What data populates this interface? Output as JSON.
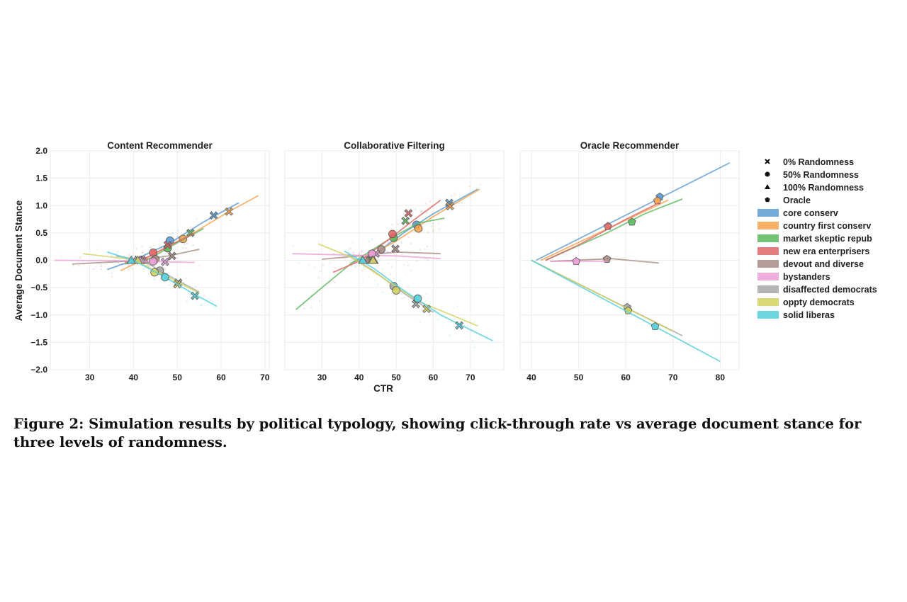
{
  "figure": {
    "caption": "Figure 2: Simulation results by political typology, showing click-through rate vs average document stance for three levels of randomness.",
    "shared_ylabel": "Average Document Stance",
    "shared_xlabel": "CTR",
    "legend": {
      "markers": [
        {
          "label": "0% Randomness",
          "marker": "x"
        },
        {
          "label": "50% Randomness",
          "marker": "circle"
        },
        {
          "label": "100% Randomness",
          "marker": "triangle"
        },
        {
          "label": "Oracle",
          "marker": "pentagon"
        }
      ],
      "groups": [
        {
          "label": "core conserv",
          "color": "#5b9bd0"
        },
        {
          "label": "country first conserv",
          "color": "#f5a24e"
        },
        {
          "label": "market skeptic repub",
          "color": "#5cb85c"
        },
        {
          "label": "new era enterprisers",
          "color": "#e06666"
        },
        {
          "label": "devout and diverse",
          "color": "#a88b84"
        },
        {
          "label": "bystanders",
          "color": "#ec9fd8"
        },
        {
          "label": "disaffected democrats",
          "color": "#a6a6a6"
        },
        {
          "label": "oppty democrats",
          "color": "#d2d260"
        },
        {
          "label": "solid liberas",
          "color": "#53d0dc"
        }
      ]
    }
  },
  "chart_data": [
    {
      "type": "scatter",
      "title": "Content Recommender",
      "xlim": [
        21,
        71
      ],
      "ylim": [
        -2.0,
        2.0
      ],
      "xticks": [
        "30",
        "40",
        "50",
        "60",
        "70"
      ],
      "yticks": [
        "2.0",
        "1.5",
        "1.0",
        "0.5",
        "0.0",
        "−0.5",
        "−1.0",
        "−1.5",
        "−2.0"
      ],
      "grid": true,
      "series": [
        {
          "name": "core conserv",
          "line": [
            [
              34,
              -0.17
            ],
            [
              40,
              0
            ],
            [
              48,
              0.3
            ],
            [
              56,
              0.7
            ],
            [
              64,
              1.05
            ]
          ],
          "points": [
            {
              "x": 58.3,
              "y": 0.82,
              "m": "x"
            },
            {
              "x": 48.3,
              "y": 0.36,
              "m": "circle"
            },
            {
              "x": 40.5,
              "y": 0,
              "m": "triangle"
            }
          ]
        },
        {
          "name": "country first conserv",
          "line": [
            [
              37,
              -0.19
            ],
            [
              42,
              0
            ],
            [
              52,
              0.42
            ],
            [
              62,
              0.9
            ],
            [
              68.5,
              1.18
            ]
          ],
          "points": [
            {
              "x": 61.8,
              "y": 0.89,
              "m": "x"
            },
            {
              "x": 51.3,
              "y": 0.39,
              "m": "circle"
            },
            {
              "x": 41.8,
              "y": 0,
              "m": "triangle"
            }
          ]
        },
        {
          "name": "market skeptic repub",
          "line": [
            [
              38,
              -0.07
            ],
            [
              43,
              0
            ],
            [
              50,
              0.32
            ],
            [
              56,
              0.58
            ]
          ],
          "points": [
            {
              "x": 53.0,
              "y": 0.5,
              "m": "x"
            },
            {
              "x": 47.8,
              "y": 0.22,
              "m": "circle"
            },
            {
              "x": 41.5,
              "y": 0,
              "m": "triangle"
            }
          ]
        },
        {
          "name": "new era enterprisers",
          "line": [
            [
              38,
              -0.04
            ],
            [
              43,
              0.05
            ],
            [
              49,
              0.3
            ],
            [
              54,
              0.5
            ]
          ],
          "points": [
            {
              "x": 47.8,
              "y": 0.28,
              "m": "x"
            },
            {
              "x": 44.5,
              "y": 0.14,
              "m": "circle"
            },
            {
              "x": 42.5,
              "y": 0,
              "m": "triangle"
            }
          ]
        },
        {
          "name": "devout and diverse",
          "line": [
            [
              26,
              -0.07
            ],
            [
              40,
              -0.01
            ],
            [
              48,
              0.08
            ],
            [
              55,
              0.2
            ]
          ],
          "points": [
            {
              "x": 48.8,
              "y": 0.08,
              "m": "x"
            },
            {
              "x": 45.0,
              "y": 0.02,
              "m": "circle"
            },
            {
              "x": 42.0,
              "y": 0,
              "m": "triangle"
            }
          ]
        },
        {
          "name": "bystanders",
          "line": [
            [
              22,
              0
            ],
            [
              40,
              -0.01
            ],
            [
              48,
              -0.03
            ],
            [
              54,
              -0.04
            ]
          ],
          "points": [
            {
              "x": 47.2,
              "y": -0.03,
              "m": "x"
            },
            {
              "x": 44.5,
              "y": -0.02,
              "m": "circle"
            },
            {
              "x": 41.5,
              "y": 0,
              "m": "triangle"
            }
          ]
        },
        {
          "name": "disaffected democrats",
          "line": [
            [
              36,
              0.08
            ],
            [
              42,
              0
            ],
            [
              48,
              -0.28
            ],
            [
              55,
              -0.58
            ]
          ],
          "points": [
            {
              "x": 50.2,
              "y": -0.41,
              "m": "x"
            },
            {
              "x": 46.0,
              "y": -0.19,
              "m": "circle"
            },
            {
              "x": 40.5,
              "y": 0,
              "m": "triangle"
            }
          ]
        },
        {
          "name": "oppty democrats",
          "line": [
            [
              28.5,
              0.12
            ],
            [
              40,
              0.01
            ],
            [
              47,
              -0.27
            ],
            [
              55,
              -0.6
            ]
          ],
          "points": [
            {
              "x": 50.0,
              "y": -0.44,
              "m": "x"
            },
            {
              "x": 44.8,
              "y": -0.22,
              "m": "circle"
            },
            {
              "x": 41.0,
              "y": 0,
              "m": "triangle"
            }
          ]
        },
        {
          "name": "solid liberas",
          "line": [
            [
              34,
              0.15
            ],
            [
              40,
              0
            ],
            [
              47,
              -0.3
            ],
            [
              53,
              -0.58
            ],
            [
              59,
              -0.84
            ]
          ],
          "points": [
            {
              "x": 54.0,
              "y": -0.65,
              "m": "x"
            },
            {
              "x": 47.2,
              "y": -0.31,
              "m": "circle"
            },
            {
              "x": 39.5,
              "y": 0,
              "m": "triangle"
            }
          ]
        }
      ]
    },
    {
      "type": "scatter",
      "title": "Collaborative Filtering",
      "xlim": [
        20,
        79
      ],
      "ylim": [
        -2.0,
        2.0
      ],
      "xticks": [
        "30",
        "40",
        "50",
        "60",
        "70"
      ],
      "yticks": [],
      "grid": true,
      "series": [
        {
          "name": "core conserv",
          "line": [
            [
              38,
              -0.05
            ],
            [
              45,
              0.15
            ],
            [
              52,
              0.5
            ],
            [
              60,
              0.85
            ],
            [
              72,
              1.3
            ]
          ],
          "points": [
            {
              "x": 64.3,
              "y": 1.05,
              "m": "x"
            },
            {
              "x": 55.5,
              "y": 0.65,
              "m": "circle"
            },
            {
              "x": 42.5,
              "y": 0,
              "m": "triangle"
            }
          ]
        },
        {
          "name": "country first conserv",
          "line": [
            [
              41,
              0.02
            ],
            [
              50,
              0.35
            ],
            [
              60,
              0.8
            ],
            [
              72.5,
              1.3
            ]
          ],
          "points": [
            {
              "x": 64.5,
              "y": 0.99,
              "m": "x"
            },
            {
              "x": 56.0,
              "y": 0.58,
              "m": "circle"
            },
            {
              "x": 43.0,
              "y": 0,
              "m": "triangle"
            }
          ]
        },
        {
          "name": "market skeptic repub",
          "line": [
            [
              23,
              -0.9
            ],
            [
              30,
              -0.5
            ],
            [
              38,
              -0.05
            ],
            [
              48,
              0.38
            ],
            [
              56,
              0.68
            ],
            [
              63,
              0.77
            ]
          ],
          "points": [
            {
              "x": 52.5,
              "y": 0.72,
              "m": "x"
            },
            {
              "x": 49.3,
              "y": 0.41,
              "m": "circle"
            },
            {
              "x": 43.0,
              "y": 0,
              "m": "triangle"
            }
          ]
        },
        {
          "name": "new era enterprisers",
          "line": [
            [
              33,
              -0.22
            ],
            [
              40,
              -0.02
            ],
            [
              48,
              0.38
            ],
            [
              55,
              0.75
            ],
            [
              62,
              1.1
            ]
          ],
          "points": [
            {
              "x": 53.3,
              "y": 0.86,
              "m": "x"
            },
            {
              "x": 49.0,
              "y": 0.48,
              "m": "circle"
            },
            {
              "x": 44.0,
              "y": 0,
              "m": "triangle"
            }
          ]
        },
        {
          "name": "devout and diverse",
          "line": [
            [
              30,
              0.02
            ],
            [
              40,
              0.08
            ],
            [
              50,
              0.15
            ],
            [
              62,
              0.12
            ]
          ],
          "points": [
            {
              "x": 49.8,
              "y": 0.21,
              "m": "x"
            },
            {
              "x": 46.0,
              "y": 0.2,
              "m": "circle"
            },
            {
              "x": 42.3,
              "y": 0,
              "m": "triangle"
            }
          ]
        },
        {
          "name": "bystanders",
          "line": [
            [
              22,
              0.12
            ],
            [
              40,
              0.09
            ],
            [
              50,
              0.08
            ],
            [
              62,
              0.03
            ]
          ],
          "points": [
            {
              "x": 44.5,
              "y": 0.12,
              "m": "x"
            },
            {
              "x": 43.5,
              "y": 0.12,
              "m": "circle"
            },
            {
              "x": 41.0,
              "y": 0,
              "m": "triangle"
            }
          ]
        },
        {
          "name": "disaffected democrats",
          "line": [
            [
              37,
              0.1
            ],
            [
              44,
              -0.2
            ],
            [
              52,
              -0.6
            ],
            [
              60,
              -0.95
            ]
          ],
          "points": [
            {
              "x": 55.3,
              "y": -0.8,
              "m": "x"
            },
            {
              "x": 49.3,
              "y": -0.47,
              "m": "circle"
            },
            {
              "x": 43.5,
              "y": 0,
              "m": "triangle"
            }
          ]
        },
        {
          "name": "oppty democrats",
          "line": [
            [
              29,
              0.3
            ],
            [
              38,
              0.05
            ],
            [
              46,
              -0.3
            ],
            [
              56,
              -0.75
            ],
            [
              72,
              -1.2
            ]
          ],
          "points": [
            {
              "x": 58.2,
              "y": -0.89,
              "m": "x"
            },
            {
              "x": 50.0,
              "y": -0.55,
              "m": "circle"
            },
            {
              "x": 43.8,
              "y": 0,
              "m": "triangle"
            }
          ]
        },
        {
          "name": "solid liberas",
          "line": [
            [
              36,
              0.17
            ],
            [
              44,
              -0.15
            ],
            [
              52,
              -0.55
            ],
            [
              62,
              -1.0
            ],
            [
              76,
              -1.47
            ]
          ],
          "points": [
            {
              "x": 67.0,
              "y": -1.19,
              "m": "x"
            },
            {
              "x": 55.8,
              "y": -0.7,
              "m": "circle"
            },
            {
              "x": 41.0,
              "y": 0,
              "m": "triangle"
            }
          ]
        }
      ]
    },
    {
      "type": "scatter",
      "title": "Oracle Recommender",
      "xlim": [
        37.6,
        84
      ],
      "ylim": [
        -2.0,
        2.0
      ],
      "xticks": [
        "40",
        "50",
        "60",
        "70",
        "80"
      ],
      "yticks": [],
      "grid": true,
      "series": [
        {
          "name": "core conserv",
          "line": [
            [
              41,
              0
            ],
            [
              82,
              1.78
            ]
          ],
          "points": [
            {
              "x": 67.2,
              "y": 1.16,
              "m": "pentagon"
            }
          ]
        },
        {
          "name": "country first conserv",
          "line": [
            [
              42,
              0
            ],
            [
              69,
              1.1
            ]
          ],
          "points": [
            {
              "x": 66.7,
              "y": 1.09,
              "m": "pentagon"
            }
          ]
        },
        {
          "name": "market skeptic repub",
          "line": [
            [
              43,
              0
            ],
            [
              56,
              0.5
            ],
            [
              64,
              0.85
            ],
            [
              72,
              1.12
            ]
          ],
          "points": [
            {
              "x": 61.3,
              "y": 0.7,
              "m": "pentagon"
            }
          ]
        },
        {
          "name": "new era enterprisers",
          "line": [
            [
              43,
              0
            ],
            [
              50,
              0.28
            ],
            [
              60,
              0.75
            ],
            [
              67,
              1.05
            ]
          ],
          "points": [
            {
              "x": 56.2,
              "y": 0.62,
              "m": "pentagon"
            }
          ]
        },
        {
          "name": "devout and diverse",
          "line": [
            [
              44,
              -0.02
            ],
            [
              52,
              0.01
            ],
            [
              57,
              0.03
            ],
            [
              67,
              -0.05
            ]
          ],
          "points": [
            {
              "x": 56.0,
              "y": 0.02,
              "m": "pentagon"
            }
          ]
        },
        {
          "name": "bystanders",
          "line": [
            [
              44,
              -0.02
            ],
            [
              56,
              -0.02
            ]
          ],
          "points": [
            {
              "x": 49.5,
              "y": -0.02,
              "m": "pentagon"
            }
          ]
        },
        {
          "name": "disaffected democrats",
          "line": [
            [
              40,
              0
            ],
            [
              72,
              -1.38
            ]
          ],
          "points": [
            {
              "x": 60.3,
              "y": -0.86,
              "m": "pentagon"
            }
          ]
        },
        {
          "name": "oppty democrats",
          "line": [
            [
              40,
              0
            ],
            [
              70,
              -1.3
            ]
          ],
          "points": [
            {
              "x": 60.5,
              "y": -0.92,
              "m": "pentagon"
            }
          ]
        },
        {
          "name": "solid liberas",
          "line": [
            [
              40,
              0
            ],
            [
              80,
              -1.85
            ]
          ],
          "points": [
            {
              "x": 66.2,
              "y": -1.21,
              "m": "pentagon"
            }
          ]
        }
      ]
    }
  ]
}
